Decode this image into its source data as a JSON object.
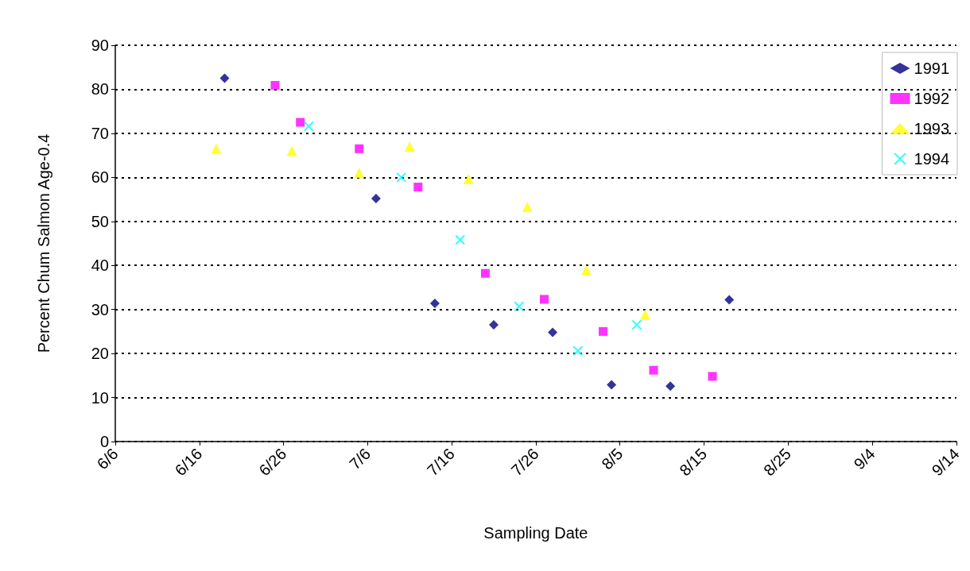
{
  "chart_data": {
    "type": "scatter",
    "xlabel": "Sampling Date",
    "ylabel": "Percent Chum Salmon Age-0.4",
    "xlim": [
      "--06-06",
      "--09-14"
    ],
    "xticks": [
      {
        "value": "--06-06",
        "label": "6/6"
      },
      {
        "value": "--06-16",
        "label": "6/16"
      },
      {
        "value": "--06-26",
        "label": "6/26"
      },
      {
        "value": "--07-06",
        "label": "7/6"
      },
      {
        "value": "--07-16",
        "label": "7/16"
      },
      {
        "value": "--07-26",
        "label": "7/26"
      },
      {
        "value": "--08-05",
        "label": "8/5"
      },
      {
        "value": "--08-15",
        "label": "8/15"
      },
      {
        "value": "--08-25",
        "label": "8/25"
      },
      {
        "value": "--09-04",
        "label": "9/4"
      },
      {
        "value": "--09-14",
        "label": "9/14"
      }
    ],
    "ylim": [
      0,
      90
    ],
    "yticks": [
      0,
      10,
      20,
      30,
      40,
      50,
      60,
      70,
      80,
      90
    ],
    "grid": "y",
    "legend": "top right",
    "series": [
      {
        "name": "1991",
        "color": "#000080",
        "marker": "diamond",
        "x": [
          "--06-19",
          "--07-07",
          "--07-14",
          "--07-21",
          "--07-28",
          "--08-04",
          "--08-11",
          "--08-18"
        ],
        "values": [
          82.5,
          55.2,
          31.4,
          26.5,
          24.8,
          12.9,
          12.6,
          32.2
        ]
      },
      {
        "name": "1992",
        "color": "#ff00ff",
        "marker": "square",
        "x": [
          "--06-25",
          "--06-28",
          "--07-05",
          "--07-12",
          "--07-20",
          "--07-27",
          "--08-03",
          "--08-09",
          "--08-16"
        ],
        "values": [
          80.9,
          72.5,
          66.5,
          57.8,
          38.2,
          32.3,
          25,
          16.2,
          14.8
        ]
      },
      {
        "name": "1993",
        "color": "#ffff00",
        "marker": "triangle",
        "x": [
          "--06-18",
          "--06-27",
          "--07-05",
          "--07-11",
          "--07-18",
          "--07-25",
          "--08-01",
          "--08-08"
        ],
        "values": [
          66.5,
          66,
          61,
          67,
          59.6,
          53.3,
          38.9,
          28.8
        ]
      },
      {
        "name": "1994",
        "color": "#00ffff",
        "marker": "cross",
        "x": [
          "--06-29",
          "--07-10",
          "--07-17",
          "--07-24",
          "--07-31",
          "--08-07"
        ],
        "values": [
          71.6,
          60,
          45.8,
          30.7,
          20.6,
          26.5
        ]
      }
    ]
  }
}
